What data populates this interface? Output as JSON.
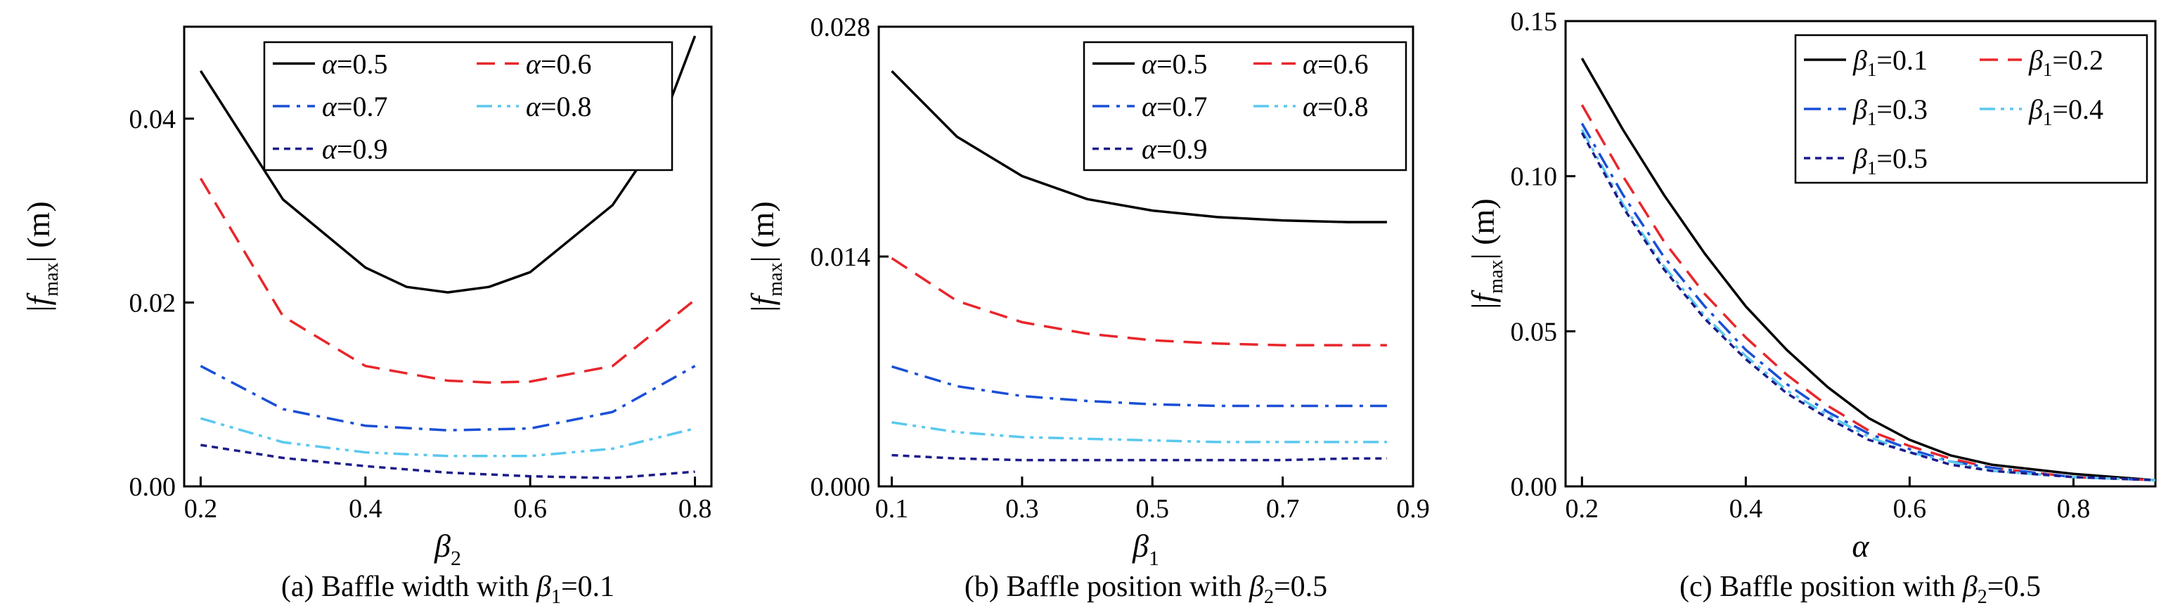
{
  "chart_data": [
    {
      "id": "a",
      "type": "line",
      "caption": "(a) Baffle width with β1=0.1",
      "caption_parts": {
        "prefix": "(a) Baffle width with ",
        "var": "β",
        "sub": "1",
        "suffix": "=0.1"
      },
      "xlabel": {
        "var": "β",
        "sub": "2"
      },
      "ylabel": {
        "pre": "|",
        "var": "f",
        "sub": "max",
        "post": "| (m)"
      },
      "xlim": [
        0.18,
        0.82
      ],
      "ylim": [
        0,
        0.05
      ],
      "xticks": [
        0.2,
        0.4,
        0.6,
        0.8
      ],
      "xtick_labels": [
        "0.2",
        "0.4",
        "0.6",
        "0.8"
      ],
      "yticks": [
        0,
        0.02,
        0.04
      ],
      "ytick_labels": [
        "0.00",
        "0.02",
        "0.04"
      ],
      "legend_position": "top-right",
      "series": [
        {
          "name": "α=0.5",
          "var": "α",
          "val": "=0.5",
          "color": "#000000",
          "dash": "solid",
          "x": [
            0.2,
            0.3,
            0.4,
            0.45,
            0.5,
            0.55,
            0.6,
            0.7,
            0.75,
            0.8
          ],
          "y": [
            0.0452,
            0.0312,
            0.0238,
            0.0217,
            0.0211,
            0.0217,
            0.0233,
            0.0306,
            0.0372,
            0.049
          ]
        },
        {
          "name": "α=0.6",
          "var": "α",
          "val": "=0.6",
          "color": "#e8262b",
          "dash": "dash",
          "x": [
            0.2,
            0.3,
            0.4,
            0.5,
            0.55,
            0.6,
            0.7,
            0.8
          ],
          "y": [
            0.0335,
            0.0185,
            0.0131,
            0.0115,
            0.0113,
            0.0114,
            0.0131,
            0.0203
          ]
        },
        {
          "name": "α=0.7",
          "var": "α",
          "val": "=0.7",
          "color": "#1a4fd6",
          "dash": "dashdot",
          "x": [
            0.2,
            0.3,
            0.4,
            0.5,
            0.6,
            0.7,
            0.8
          ],
          "y": [
            0.0131,
            0.0084,
            0.0066,
            0.0061,
            0.0063,
            0.0081,
            0.0131
          ]
        },
        {
          "name": "α=0.8",
          "var": "α",
          "val": "=0.8",
          "color": "#5ac8ef",
          "dash": "dashdotdot",
          "x": [
            0.2,
            0.3,
            0.4,
            0.5,
            0.6,
            0.7,
            0.8
          ],
          "y": [
            0.0074,
            0.0048,
            0.0037,
            0.0033,
            0.0033,
            0.0041,
            0.0063
          ]
        },
        {
          "name": "α=0.9",
          "var": "α",
          "val": "=0.9",
          "color": "#1c1c8a",
          "dash": "dot",
          "x": [
            0.2,
            0.3,
            0.4,
            0.5,
            0.6,
            0.7,
            0.8
          ],
          "y": [
            0.0045,
            0.0031,
            0.0022,
            0.0015,
            0.0011,
            0.0009,
            0.0016
          ]
        }
      ]
    },
    {
      "id": "b",
      "type": "line",
      "caption": "(b) Baffle position with β2=0.5",
      "caption_parts": {
        "prefix": "(b) Baffle position with ",
        "var": "β",
        "sub": "2",
        "suffix": "=0.5"
      },
      "xlabel": {
        "var": "β",
        "sub": "1"
      },
      "ylabel": {
        "pre": "|",
        "var": "f",
        "sub": "max",
        "post": "| (m)"
      },
      "xlim": [
        0.08,
        0.9
      ],
      "ylim": [
        0,
        0.028
      ],
      "xticks": [
        0.1,
        0.3,
        0.5,
        0.7,
        0.9
      ],
      "xtick_labels": [
        "0.1",
        "0.3",
        "0.5",
        "0.7",
        "0.9"
      ],
      "yticks": [
        0,
        0.014,
        0.028
      ],
      "ytick_labels": [
        "0.000",
        "0.014",
        "0.028"
      ],
      "legend_position": "top-right",
      "series": [
        {
          "name": "α=0.5",
          "var": "α",
          "val": "=0.5",
          "color": "#000000",
          "dash": "solid",
          "x": [
            0.1,
            0.2,
            0.3,
            0.4,
            0.5,
            0.6,
            0.7,
            0.8,
            0.86
          ],
          "y": [
            0.0253,
            0.0213,
            0.0189,
            0.0175,
            0.0168,
            0.0164,
            0.0162,
            0.0161,
            0.0161
          ]
        },
        {
          "name": "α=0.6",
          "var": "α",
          "val": "=0.6",
          "color": "#e8262b",
          "dash": "dash",
          "x": [
            0.1,
            0.2,
            0.3,
            0.4,
            0.5,
            0.6,
            0.7,
            0.8,
            0.86
          ],
          "y": [
            0.0139,
            0.0113,
            0.01,
            0.0093,
            0.0089,
            0.0087,
            0.0086,
            0.0086,
            0.0086
          ]
        },
        {
          "name": "α=0.7",
          "var": "α",
          "val": "=0.7",
          "color": "#1a4fd6",
          "dash": "dashdot",
          "x": [
            0.1,
            0.2,
            0.3,
            0.4,
            0.5,
            0.6,
            0.7,
            0.8,
            0.86
          ],
          "y": [
            0.0073,
            0.0061,
            0.0055,
            0.0052,
            0.005,
            0.0049,
            0.0049,
            0.0049,
            0.0049
          ]
        },
        {
          "name": "α=0.8",
          "var": "α",
          "val": "=0.8",
          "color": "#5ac8ef",
          "dash": "dashdotdot",
          "x": [
            0.1,
            0.2,
            0.3,
            0.4,
            0.5,
            0.6,
            0.7,
            0.8,
            0.86
          ],
          "y": [
            0.0039,
            0.0033,
            0.003,
            0.0029,
            0.0028,
            0.0027,
            0.0027,
            0.0027,
            0.0027
          ]
        },
        {
          "name": "α=0.9",
          "var": "α",
          "val": "=0.9",
          "color": "#1c1c8a",
          "dash": "dot",
          "x": [
            0.1,
            0.2,
            0.3,
            0.4,
            0.5,
            0.6,
            0.7,
            0.8,
            0.86
          ],
          "y": [
            0.0019,
            0.0017,
            0.0016,
            0.0016,
            0.0016,
            0.0016,
            0.0016,
            0.0017,
            0.0017
          ]
        }
      ]
    },
    {
      "id": "c",
      "type": "line",
      "caption": "(c) Baffle position with β2=0.5",
      "caption_parts": {
        "prefix": "(c) Baffle position with ",
        "var": "β",
        "sub": "2",
        "suffix": "=0.5"
      },
      "xlabel": {
        "var": "α",
        "sub": ""
      },
      "ylabel": {
        "pre": "|",
        "var": "f",
        "sub": "max",
        "post": "| (m)"
      },
      "xlim": [
        0.18,
        0.9
      ],
      "ylim": [
        0,
        0.15
      ],
      "xticks": [
        0.2,
        0.4,
        0.6,
        0.8
      ],
      "xtick_labels": [
        "0.2",
        "0.4",
        "0.6",
        "0.8"
      ],
      "yticks": [
        0,
        0.05,
        0.1,
        0.15
      ],
      "ytick_labels": [
        "0.00",
        "0.05",
        "0.10",
        "0.15"
      ],
      "legend_position": "top-right",
      "series": [
        {
          "name": "β1=0.1",
          "var": "β",
          "sub": "1",
          "val": "=0.1",
          "color": "#000000",
          "dash": "solid",
          "x": [
            0.2,
            0.25,
            0.3,
            0.35,
            0.4,
            0.45,
            0.5,
            0.55,
            0.6,
            0.65,
            0.7,
            0.8,
            0.9
          ],
          "y": [
            0.138,
            0.115,
            0.094,
            0.075,
            0.058,
            0.044,
            0.032,
            0.022,
            0.015,
            0.01,
            0.007,
            0.004,
            0.002
          ]
        },
        {
          "name": "β1=0.2",
          "var": "β",
          "sub": "1",
          "val": "=0.2",
          "color": "#e8262b",
          "dash": "dash",
          "x": [
            0.2,
            0.25,
            0.3,
            0.35,
            0.4,
            0.45,
            0.5,
            0.55,
            0.6,
            0.65,
            0.7,
            0.8,
            0.9
          ],
          "y": [
            0.123,
            0.1,
            0.079,
            0.062,
            0.048,
            0.036,
            0.026,
            0.018,
            0.013,
            0.009,
            0.006,
            0.003,
            0.002
          ]
        },
        {
          "name": "β1=0.3",
          "var": "β",
          "sub": "1",
          "val": "=0.3",
          "color": "#1a4fd6",
          "dash": "dashdot",
          "x": [
            0.2,
            0.25,
            0.3,
            0.35,
            0.4,
            0.45,
            0.5,
            0.55,
            0.6,
            0.65,
            0.7,
            0.8,
            0.9
          ],
          "y": [
            0.117,
            0.094,
            0.074,
            0.058,
            0.044,
            0.033,
            0.024,
            0.017,
            0.012,
            0.008,
            0.006,
            0.003,
            0.002
          ]
        },
        {
          "name": "β1=0.4",
          "var": "β",
          "sub": "1",
          "val": "=0.4",
          "color": "#5ac8ef",
          "dash": "dashdotdot",
          "x": [
            0.2,
            0.25,
            0.3,
            0.35,
            0.4,
            0.45,
            0.5,
            0.55,
            0.6,
            0.65,
            0.7,
            0.8,
            0.9
          ],
          "y": [
            0.115,
            0.091,
            0.071,
            0.055,
            0.042,
            0.031,
            0.023,
            0.016,
            0.011,
            0.008,
            0.005,
            0.003,
            0.002
          ]
        },
        {
          "name": "β1=0.5",
          "var": "β",
          "sub": "1",
          "val": "=0.5",
          "color": "#1c1c8a",
          "dash": "dot",
          "x": [
            0.2,
            0.25,
            0.3,
            0.35,
            0.4,
            0.45,
            0.5,
            0.55,
            0.6,
            0.65,
            0.7,
            0.8,
            0.9
          ],
          "y": [
            0.114,
            0.09,
            0.07,
            0.054,
            0.041,
            0.03,
            0.022,
            0.015,
            0.011,
            0.007,
            0.005,
            0.003,
            0.002
          ]
        }
      ]
    }
  ]
}
